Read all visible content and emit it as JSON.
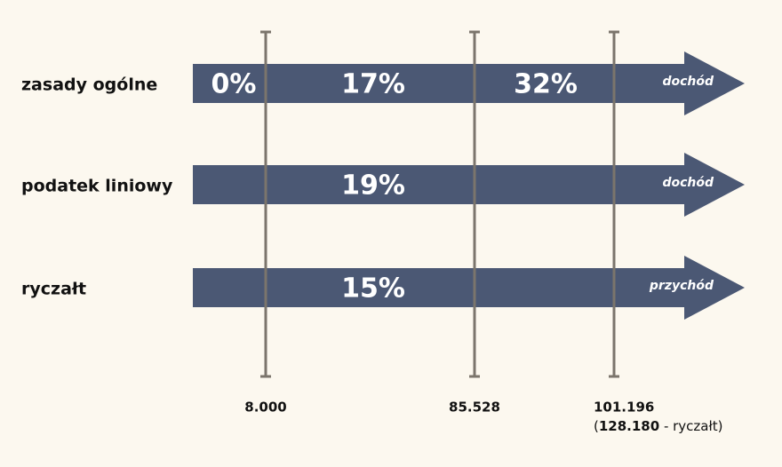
{
  "rows": [
    {
      "label": "zasady ogólne",
      "rates": [
        "0%",
        "17%",
        "32%"
      ],
      "base": "dochód"
    },
    {
      "label": "podatek liniowy",
      "rates": [
        "19%"
      ],
      "base": "dochód"
    },
    {
      "label": "ryczałt",
      "rates": [
        "15%"
      ],
      "base": "przychód"
    }
  ],
  "thresholds": [
    "8.000",
    "85.528",
    "101.196"
  ],
  "threshold_note": {
    "prefix": "(",
    "value": "128.180",
    "suffix": " - ryczałt)"
  }
}
